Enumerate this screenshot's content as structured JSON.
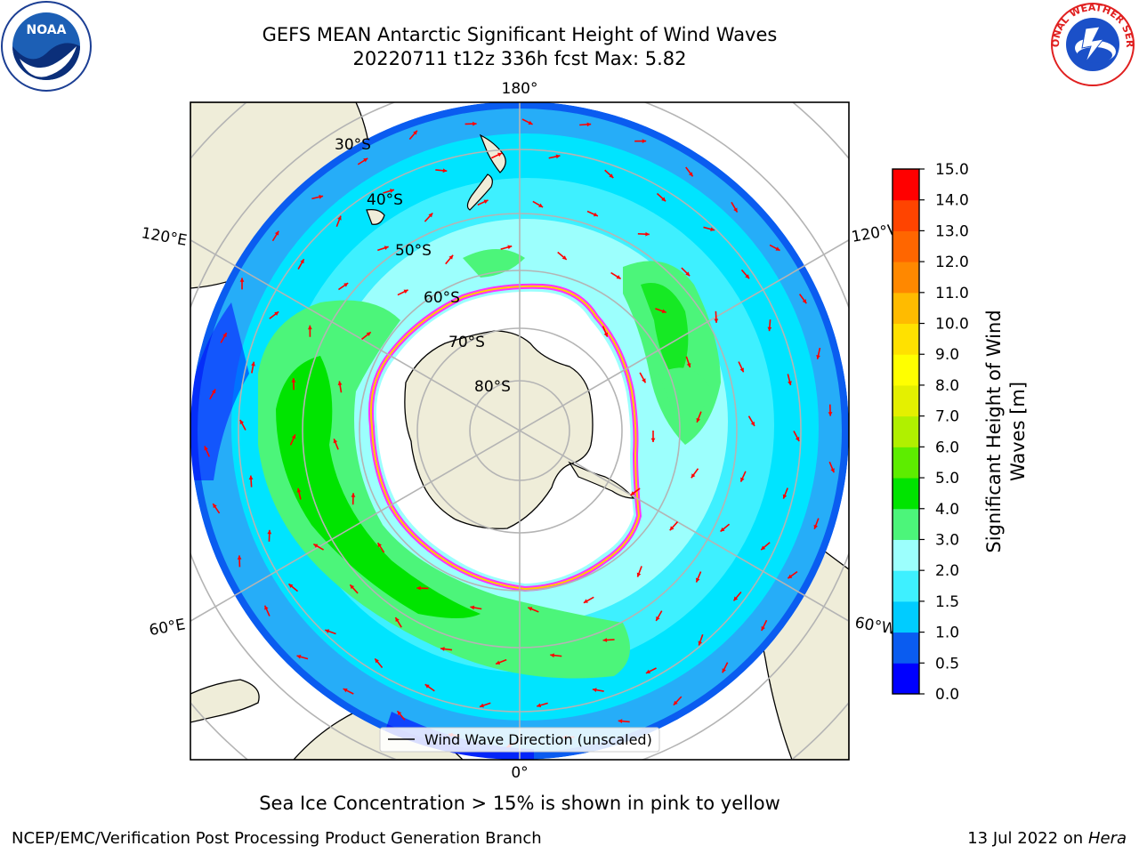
{
  "title": {
    "line1": "GEFS MEAN Antarctic Significant Height of Wind Waves",
    "line2": "20220711 t12z 336h fcst   Max: 5.82"
  },
  "map": {
    "longitude_labels": {
      "top": "180°",
      "bottom": "0°",
      "upper_left": "120°E",
      "lower_left": "60°E",
      "upper_right": "120°W",
      "lower_right": "60°W"
    },
    "latitude_labels": [
      "30°S",
      "40°S",
      "50°S",
      "60°S",
      "70°S",
      "80°S"
    ],
    "legend_label": "Wind Wave Direction (unscaled)",
    "land_color": "#efedd9",
    "arrow_color": "#ff0000"
  },
  "colorbar": {
    "label": "Significant Height of Wind Waves [m]",
    "label_line1": "Significant Height of Wind",
    "label_line2": "Waves [m]",
    "ticks": [
      "0.0",
      "0.5",
      "1.0",
      "1.5",
      "2.0",
      "3.0",
      "4.0",
      "5.0",
      "6.0",
      "7.0",
      "8.0",
      "9.0",
      "10.0",
      "11.0",
      "12.0",
      "13.0",
      "14.0",
      "15.0"
    ],
    "colors": [
      "#0000ff",
      "#0a5cf0",
      "#00ccff",
      "#3ef0ff",
      "#9cfffd",
      "#4cf57a",
      "#00e400",
      "#5ded00",
      "#b0f000",
      "#e4f000",
      "#ffff00",
      "#ffe100",
      "#ffbb00",
      "#ff8800",
      "#ff6600",
      "#ff4400",
      "#ff0000"
    ]
  },
  "field": {
    "levels": {
      "ice": "#ffffff",
      "band_1": "#9cfffd",
      "band_2": "#3ef0ff",
      "band_3": "#00e4ff",
      "band_4": "#0a5cf0",
      "band_5": "#0000ff",
      "green": "#4cf57a",
      "green_strong": "#00e400",
      "ice_edge_pink": "#ff33ff",
      "ice_edge_yellow": "#ffcc00"
    }
  },
  "footer": {
    "note": "Sea Ice Concentration > 15% is shown in pink to yellow",
    "credit": "NCEP/EMC/Verification Post Processing Product Generation Branch",
    "date_prefix": "13 Jul 2022 on ",
    "host": "Hera"
  },
  "logos": {
    "noaa_text": "NOAA",
    "nws_text": "NATIONAL WEATHER SERVICE"
  }
}
